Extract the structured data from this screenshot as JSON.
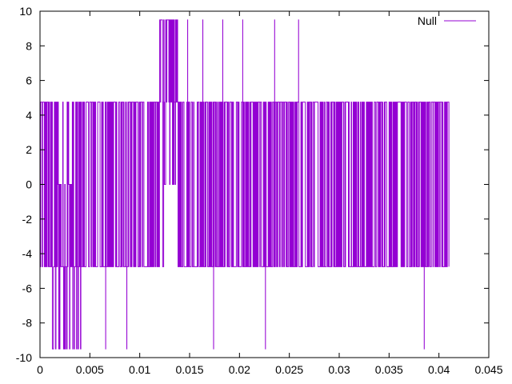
{
  "chart_data": {
    "type": "line",
    "title": "",
    "xlabel": "",
    "ylabel": "",
    "xlim": [
      0,
      0.045
    ],
    "ylim": [
      -10,
      10
    ],
    "x_ticks": [
      "0",
      "0.005",
      "0.01",
      "0.015",
      "0.02",
      "0.025",
      "0.03",
      "0.035",
      "0.04",
      "0.045"
    ],
    "x_tick_values": [
      0,
      0.005,
      0.01,
      0.015,
      0.02,
      0.025,
      0.03,
      0.035,
      0.04,
      0.045
    ],
    "y_ticks": [
      "-10",
      "-8",
      "-6",
      "-4",
      "-2",
      "0",
      "2",
      "4",
      "6",
      "8",
      "10"
    ],
    "y_tick_values": [
      -10,
      -8,
      -6,
      -4,
      -2,
      0,
      2,
      4,
      6,
      8,
      10
    ],
    "grid": false,
    "legend_position": "top-right",
    "color": "#9400d3",
    "series": [
      {
        "name": "Null",
        "description_levels": [
          -9.5,
          -4.75,
          0,
          4.75,
          9.5
        ],
        "x_range": [
          0,
          0.041
        ],
        "segments": [
          {
            "x_start": 0.0,
            "x_end": 0.0012,
            "levels": [
              -4.75,
              4.75
            ]
          },
          {
            "x_start": 0.0012,
            "x_end": 0.0016,
            "levels": [
              -9.5,
              -4.75,
              4.75
            ]
          },
          {
            "x_start": 0.0016,
            "x_end": 0.0033,
            "levels": [
              -9.5,
              -4.75,
              0,
              4.75
            ]
          },
          {
            "x_start": 0.0033,
            "x_end": 0.0041,
            "levels": [
              -9.5,
              -4.75,
              4.75
            ]
          },
          {
            "x_start": 0.0041,
            "x_end": 0.012,
            "levels": [
              -4.75,
              4.75
            ]
          },
          {
            "x_start": 0.012,
            "x_end": 0.0123,
            "levels": [
              4.75,
              9.5
            ]
          },
          {
            "x_start": 0.0123,
            "x_end": 0.0124,
            "levels": [
              -4.75,
              9.5
            ]
          },
          {
            "x_start": 0.0124,
            "x_end": 0.0138,
            "levels": [
              0,
              4.75,
              9.5
            ]
          },
          {
            "x_start": 0.0138,
            "x_end": 0.041,
            "levels": [
              -4.75,
              4.75
            ]
          }
        ],
        "spikes_to_9_5": [
          0.0148,
          0.0163,
          0.0183,
          0.0203,
          0.0235,
          0.0259
        ],
        "spikes_to_neg_9_5": [
          0.0066,
          0.0087,
          0.0174,
          0.0226,
          0.0385
        ]
      }
    ]
  }
}
